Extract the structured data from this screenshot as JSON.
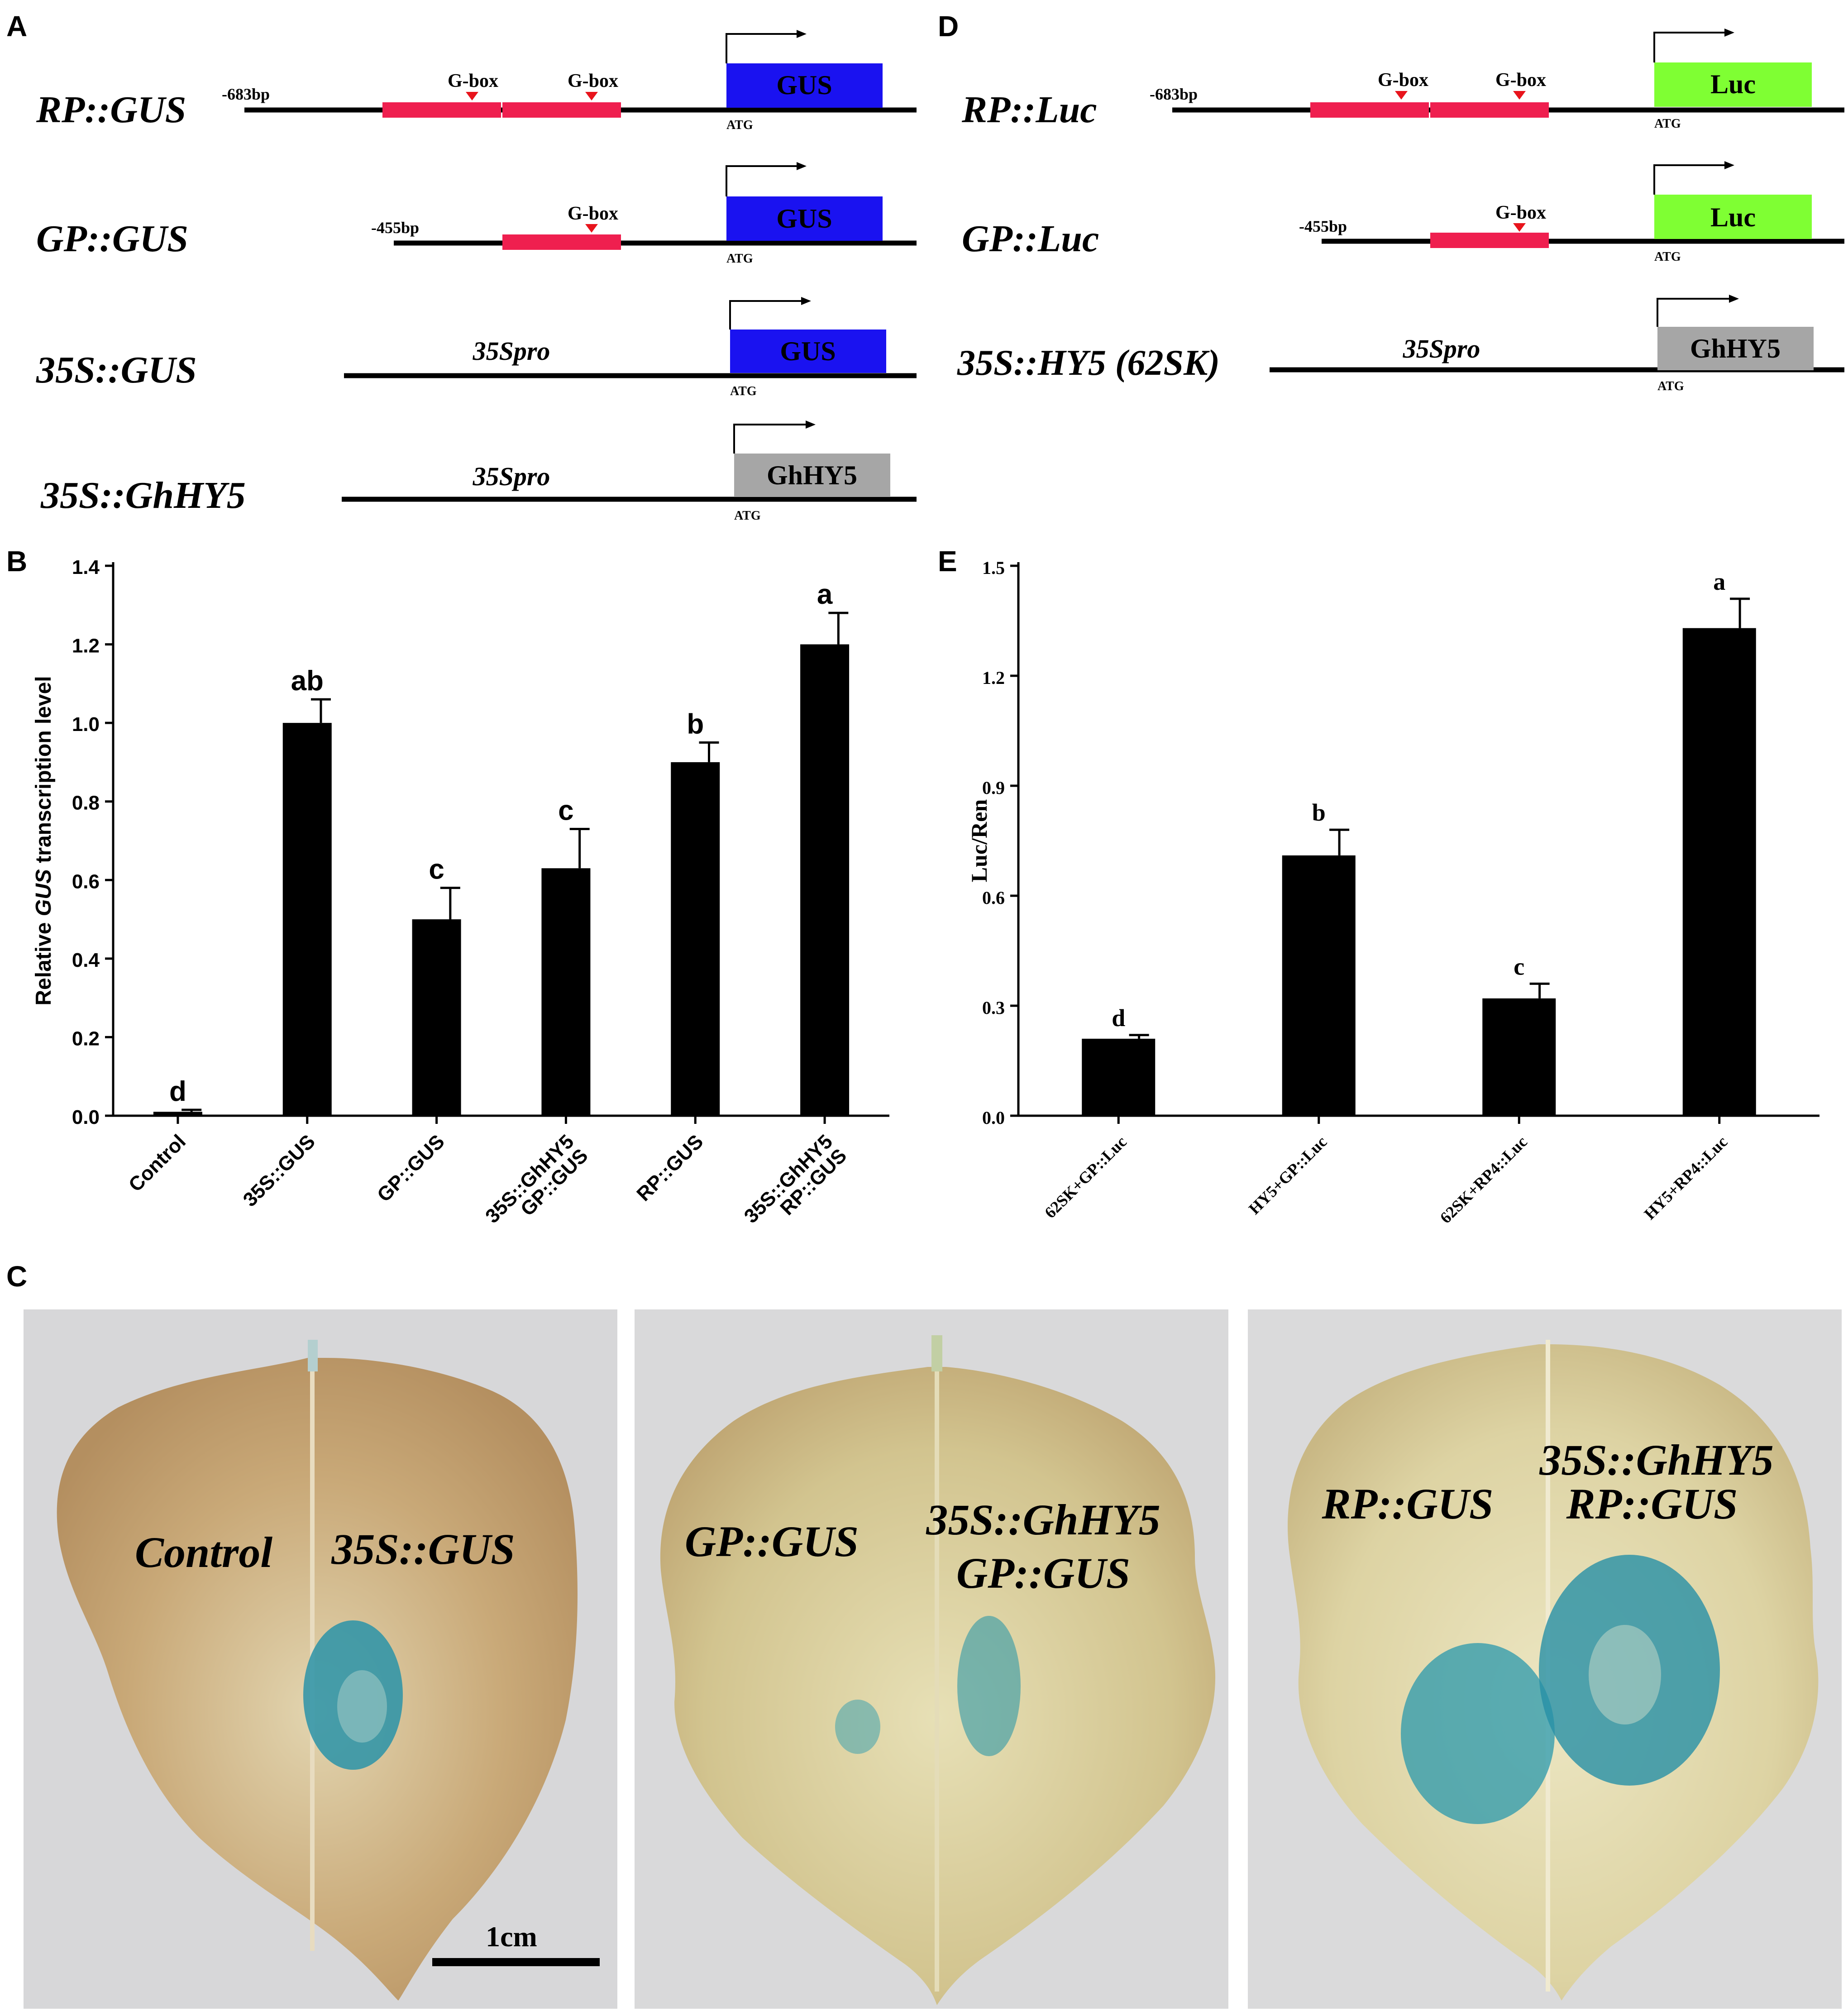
{
  "panels": {
    "A": {
      "letter": "A",
      "constructs": [
        {
          "name": "RP::GUS",
          "start_label": "-683bp",
          "boxes": [
            "G-box",
            "G-box"
          ],
          "reporter": "GUS",
          "atg": "ATG"
        },
        {
          "name": "GP::GUS",
          "start_label": "-455bp",
          "boxes": [
            "G-box"
          ],
          "reporter": "GUS",
          "atg": "ATG"
        },
        {
          "name": "35S::GUS",
          "promoter": "35Spro",
          "reporter": "GUS",
          "atg": "ATG"
        },
        {
          "name": "35S::GhHY5",
          "promoter": "35Spro",
          "reporter": "GhHY5",
          "atg": "ATG"
        }
      ]
    },
    "D": {
      "letter": "D",
      "constructs": [
        {
          "name": "RP::Luc",
          "start_label": "-683bp",
          "boxes": [
            "G-box",
            "G-box"
          ],
          "reporter": "Luc",
          "atg": "ATG"
        },
        {
          "name": "GP::Luc",
          "start_label": "-455bp",
          "boxes": [
            "G-box"
          ],
          "reporter": "Luc",
          "atg": "ATG"
        },
        {
          "name": "35S::HY5 (62SK)",
          "promoter": "35Spro",
          "reporter": "GhHY5",
          "atg": "ATG"
        }
      ]
    },
    "B": {
      "letter": "B"
    },
    "E": {
      "letter": "E"
    },
    "C": {
      "letter": "C",
      "leaves": [
        {
          "labels": [
            "Control",
            "35S::GUS"
          ]
        },
        {
          "labels": [
            "GP::GUS",
            "35S::GhHY5",
            "GP::GUS"
          ]
        },
        {
          "labels": [
            "RP::GUS",
            "35S::GhHY5",
            "RP::GUS"
          ]
        }
      ],
      "scale_bar": "1cm"
    }
  },
  "colors": {
    "gbox_region": "#ef1f4f",
    "gus_box": "#1a12f0",
    "luc_box": "#7fff33",
    "hy5_box": "#a6a6a6",
    "gbox_marker": "#e8141c",
    "gus_stain": "#1c8aa0",
    "leaf": "#c4ab76",
    "photo_bg": "#d9d9d9"
  },
  "chart_data": [
    {
      "type": "bar",
      "panel": "B",
      "categories": [
        "Control",
        "35S::GUS",
        "GP::GUS",
        "35S::GhHY5 GP::GUS",
        "RP::GUS",
        "35S::GhHY5 RP::GUS"
      ],
      "category_lines": [
        [
          "Control"
        ],
        [
          "35S::GUS"
        ],
        [
          "GP::GUS"
        ],
        [
          "35S::GhHY5",
          "GP::GUS"
        ],
        [
          "RP::GUS"
        ],
        [
          "35S::GhHY5",
          "RP::GUS"
        ]
      ],
      "values": [
        0.01,
        1.0,
        0.5,
        0.63,
        0.9,
        1.2
      ],
      "errors": [
        0.005,
        0.06,
        0.08,
        0.1,
        0.05,
        0.08
      ],
      "letters": [
        "d",
        "ab",
        "c",
        "c",
        "b",
        "a"
      ],
      "ylabel_prefix": "Relative ",
      "ylabel_italic": "GUS",
      "ylabel_suffix": " transcription level",
      "ylim": [
        0,
        1.4
      ],
      "yticks": [
        "0.0",
        "0.2",
        "0.4",
        "0.6",
        "0.8",
        "1.0",
        "1.2",
        "1.4"
      ],
      "grid": false
    },
    {
      "type": "bar",
      "panel": "E",
      "categories": [
        "62SK+GP::Luc",
        "HY5+GP::Luc",
        "62SK+RP4::Luc",
        "HY5+RP4::Luc"
      ],
      "values": [
        0.21,
        0.71,
        0.32,
        1.33
      ],
      "errors": [
        0.01,
        0.07,
        0.04,
        0.08
      ],
      "letters": [
        "d",
        "b",
        "c",
        "a"
      ],
      "ylabel": "Luc/Ren",
      "ylim": [
        0,
        1.5
      ],
      "yticks": [
        "0.0",
        "0.3",
        "0.6",
        "0.9",
        "1.2",
        "1.5"
      ],
      "grid": false
    }
  ]
}
